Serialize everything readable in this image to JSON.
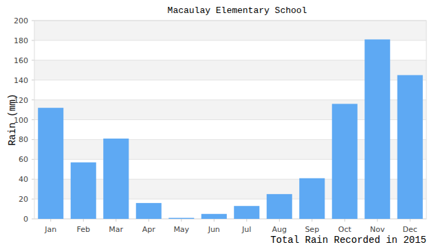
{
  "chart_data": {
    "type": "bar",
    "title": "Macaulay Elementary School",
    "ylabel": "Rain (mm)",
    "xlabel": "Total Rain Recorded in 2015",
    "categories": [
      "Jan",
      "Feb",
      "Mar",
      "Apr",
      "May",
      "Jun",
      "Jul",
      "Aug",
      "Sep",
      "Oct",
      "Nov",
      "Dec"
    ],
    "values": [
      112,
      57,
      81,
      16,
      1,
      5,
      13,
      25,
      41,
      116,
      181,
      145
    ],
    "color": "#5ea9f3",
    "ylim": [
      0,
      200
    ],
    "yticks": [
      0,
      20,
      40,
      60,
      80,
      100,
      120,
      140,
      160,
      180,
      200
    ],
    "grid": true
  }
}
